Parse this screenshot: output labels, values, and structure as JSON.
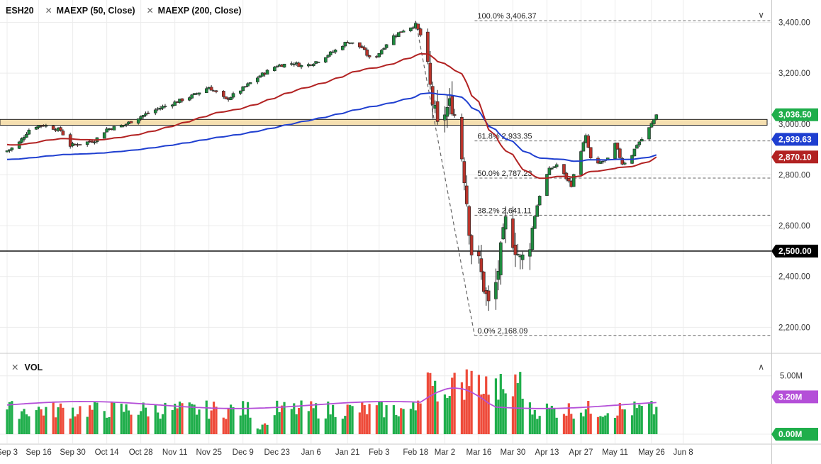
{
  "legend": {
    "symbol": "ESH20",
    "indicators": [
      {
        "label": "MAEXP (50, Close)",
        "color": "#b22222"
      },
      {
        "label": "MAEXP (200, Close)",
        "color": "#1f3fd0"
      }
    ]
  },
  "volume_pane": {
    "label": "VOL"
  },
  "price_axis": {
    "ticks": [
      "3,400.00",
      "3,200.00",
      "3,000.00",
      "2,800.00",
      "2,600.00",
      "2,400.00",
      "2,200.00"
    ],
    "tick_values": [
      3400,
      3200,
      3000,
      2800,
      2600,
      2400,
      2200
    ]
  },
  "volume_axis": {
    "ticks": [
      "5.00M"
    ],
    "tick_values": [
      5.0
    ]
  },
  "price_badges": [
    {
      "label": "3,036.50",
      "value": 3036.5,
      "color": "#1fae4b"
    },
    {
      "label": "2,939.63",
      "value": 2939.63,
      "color": "#1f3fd0"
    },
    {
      "label": "2,870.10",
      "value": 2870.1,
      "color": "#b22222"
    },
    {
      "label": "2,500.00",
      "value": 2500,
      "color": "#000000"
    }
  ],
  "volume_badges": [
    {
      "label": "3.20M",
      "value": 3.2,
      "color": "#b44fd8"
    },
    {
      "label": "0.00M",
      "value": 0,
      "color": "#1fae4b"
    }
  ],
  "fibonacci": [
    {
      "label": "100.0% 3,406.37",
      "value": 3406.37
    },
    {
      "label": "61.8% 2,933.35",
      "value": 2933.35
    },
    {
      "label": "50.0% 2,787.23",
      "value": 2787.23
    },
    {
      "label": "38.2% 2,641.11",
      "value": 2641.11
    },
    {
      "label": "0.0% 2,168.09",
      "value": 2168.09
    }
  ],
  "support_zone": {
    "low": 2995,
    "high": 3018,
    "color": "#f5dfb0"
  },
  "horizontal_line": {
    "value": 2500
  },
  "time_axis": {
    "labels": [
      "Sep 3",
      "Sep 16",
      "Sep 30",
      "Oct 14",
      "Oct 28",
      "Nov 11",
      "Nov 25",
      "Dec 9",
      "Dec 23",
      "Jan 6",
      "Jan 21",
      "Feb 3",
      "Feb 18",
      "Mar 2",
      "Mar 16",
      "Mar 30",
      "Apr 13",
      "Apr 27",
      "May 11",
      "May 26",
      "Jun 8"
    ],
    "positions_days": [
      0,
      13,
      27,
      41,
      55,
      69,
      83,
      97,
      111,
      125,
      140,
      153,
      168,
      180,
      194,
      208,
      222,
      236,
      250,
      265,
      278
    ]
  },
  "chart_data": {
    "type": "candlestick",
    "symbol": "ESH20",
    "start_date": "Sep 3",
    "ylim": [
      2120,
      3460
    ],
    "volume_ylim": [
      0,
      6.2
    ],
    "anchors": [
      {
        "day": 0,
        "close": 2895
      },
      {
        "day": 4,
        "close": 2915
      },
      {
        "day": 10,
        "close": 2990
      },
      {
        "day": 15,
        "close": 2995
      },
      {
        "day": 22,
        "close": 2975
      },
      {
        "day": 26,
        "close": 2915
      },
      {
        "day": 31,
        "close": 2925
      },
      {
        "day": 36,
        "close": 2935
      },
      {
        "day": 41,
        "close": 2980
      },
      {
        "day": 48,
        "close": 2995
      },
      {
        "day": 55,
        "close": 3030
      },
      {
        "day": 62,
        "close": 3060
      },
      {
        "day": 69,
        "close": 3085
      },
      {
        "day": 76,
        "close": 3110
      },
      {
        "day": 83,
        "close": 3145
      },
      {
        "day": 90,
        "close": 3095
      },
      {
        "day": 97,
        "close": 3140
      },
      {
        "day": 104,
        "close": 3190
      },
      {
        "day": 111,
        "close": 3230
      },
      {
        "day": 118,
        "close": 3240
      },
      {
        "day": 122,
        "close": 3225
      },
      {
        "day": 128,
        "close": 3250
      },
      {
        "day": 135,
        "close": 3290
      },
      {
        "day": 140,
        "close": 3325
      },
      {
        "day": 146,
        "close": 3300
      },
      {
        "day": 150,
        "close": 3245
      },
      {
        "day": 153,
        "close": 3280
      },
      {
        "day": 158,
        "close": 3340
      },
      {
        "day": 163,
        "close": 3370
      },
      {
        "day": 168,
        "close": 3390
      },
      {
        "day": 171,
        "close": 3330
      },
      {
        "day": 174,
        "close": 3140
      },
      {
        "day": 177,
        "close": 2980
      },
      {
        "day": 180,
        "close": 3050
      },
      {
        "day": 183,
        "close": 3080
      },
      {
        "day": 186,
        "close": 2950
      },
      {
        "day": 188,
        "close": 2800
      },
      {
        "day": 191,
        "close": 2500
      },
      {
        "day": 194,
        "close": 2450
      },
      {
        "day": 197,
        "close": 2320
      },
      {
        "day": 199,
        "close": 2250
      },
      {
        "day": 202,
        "close": 2430
      },
      {
        "day": 205,
        "close": 2610
      },
      {
        "day": 208,
        "close": 2550
      },
      {
        "day": 211,
        "close": 2460
      },
      {
        "day": 214,
        "close": 2490
      },
      {
        "day": 217,
        "close": 2640
      },
      {
        "day": 220,
        "close": 2760
      },
      {
        "day": 223,
        "close": 2820
      },
      {
        "day": 226,
        "close": 2840
      },
      {
        "day": 229,
        "close": 2800
      },
      {
        "day": 232,
        "close": 2760
      },
      {
        "day": 235,
        "close": 2870
      },
      {
        "day": 238,
        "close": 2950
      },
      {
        "day": 241,
        "close": 2820
      },
      {
        "day": 244,
        "close": 2850
      },
      {
        "day": 247,
        "close": 2860
      },
      {
        "day": 250,
        "close": 2920
      },
      {
        "day": 253,
        "close": 2845
      },
      {
        "day": 256,
        "close": 2860
      },
      {
        "day": 259,
        "close": 2920
      },
      {
        "day": 262,
        "close": 2950
      },
      {
        "day": 265,
        "close": 3000
      },
      {
        "day": 267,
        "close": 3036.5
      }
    ]
  }
}
